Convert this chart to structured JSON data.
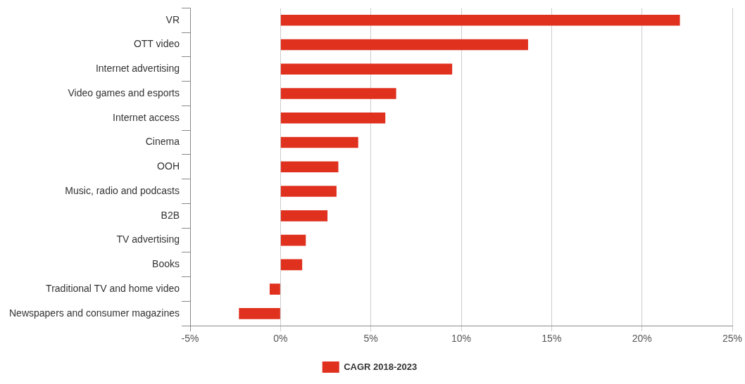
{
  "chart_data": {
    "type": "bar",
    "orientation": "horizontal",
    "categories": [
      "VR",
      "OTT video",
      "Internet advertising",
      "Video games and esports",
      "Internet access",
      "Cinema",
      "OOH",
      "Music, radio and podcasts",
      "B2B",
      "TV advertising",
      "Books",
      "Traditional TV and home video",
      "Newspapers and consumer magazines"
    ],
    "series": [
      {
        "name": "CAGR 2018-2023",
        "color": "#e0301e",
        "values": [
          22.1,
          13.7,
          9.5,
          6.4,
          5.8,
          4.3,
          3.2,
          3.1,
          2.6,
          1.4,
          1.2,
          -0.6,
          -2.3
        ]
      }
    ],
    "xlim": [
      -5,
      25
    ],
    "xticks": [
      {
        "value": -5,
        "label": "-5%"
      },
      {
        "value": 0,
        "label": "0%"
      },
      {
        "value": 5,
        "label": "5%"
      },
      {
        "value": 10,
        "label": "10%"
      },
      {
        "value": 15,
        "label": "15%"
      },
      {
        "value": 20,
        "label": "20%"
      },
      {
        "value": 25,
        "label": "25%"
      }
    ],
    "grid": "x",
    "legend": "bottom"
  }
}
